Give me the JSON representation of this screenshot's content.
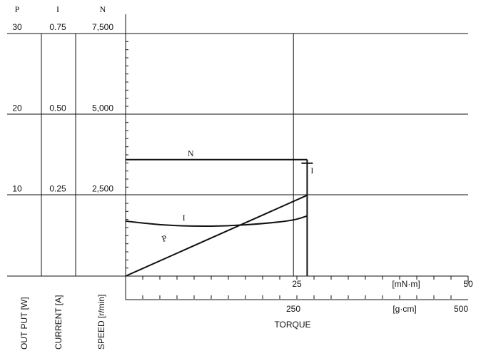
{
  "chart_data": {
    "type": "line",
    "title": "",
    "left_axes": [
      {
        "id": "P",
        "symbol": "P",
        "label": "OUT PUT [W]",
        "ticks": [
          "30",
          "20",
          "10"
        ],
        "values": [
          30,
          20,
          10
        ],
        "max": 30
      },
      {
        "id": "I",
        "symbol": "I",
        "label": "CURRENT [A]",
        "ticks": [
          "0.75",
          "0.50",
          "0.25"
        ],
        "values": [
          0.75,
          0.5,
          0.25
        ],
        "max": 0.75
      },
      {
        "id": "N",
        "symbol": "N",
        "label": "SPEED [r/min]",
        "ticks": [
          "7,500",
          "5,000",
          "2,500"
        ],
        "values": [
          7500,
          5000,
          2500
        ],
        "max": 7500
      }
    ],
    "x_axis": {
      "label": "TORQUE",
      "primary": {
        "unit": "[mN·m]",
        "ticks": [
          "25",
          "50"
        ],
        "values": [
          25,
          50
        ],
        "max": 50
      },
      "secondary": {
        "unit": "[g·cm]",
        "ticks": [
          "250",
          "500"
        ],
        "values": [
          250,
          500
        ],
        "max": 500
      }
    },
    "rated_torque": 24.5,
    "series": [
      {
        "name": "N",
        "axis": "N",
        "x": [
          0,
          24.5,
          26.5
        ],
        "y": [
          3600,
          3600,
          3600
        ]
      },
      {
        "name": "I",
        "axis": "I",
        "x": [
          0,
          5,
          10,
          15,
          20,
          24.5,
          26.5
        ],
        "y": [
          0.17,
          0.158,
          0.154,
          0.155,
          0.162,
          0.172,
          0.186
        ]
      },
      {
        "name": "P",
        "axis": "P",
        "x": [
          0,
          26.5
        ],
        "y": [
          0,
          10
        ]
      }
    ],
    "annotations": [
      {
        "text": "N",
        "series": "N"
      },
      {
        "text": "I",
        "series": "I",
        "type": "end"
      },
      {
        "text": "I",
        "series": "I",
        "type": "curve"
      },
      {
        "text": "P",
        "series": "P"
      }
    ]
  }
}
